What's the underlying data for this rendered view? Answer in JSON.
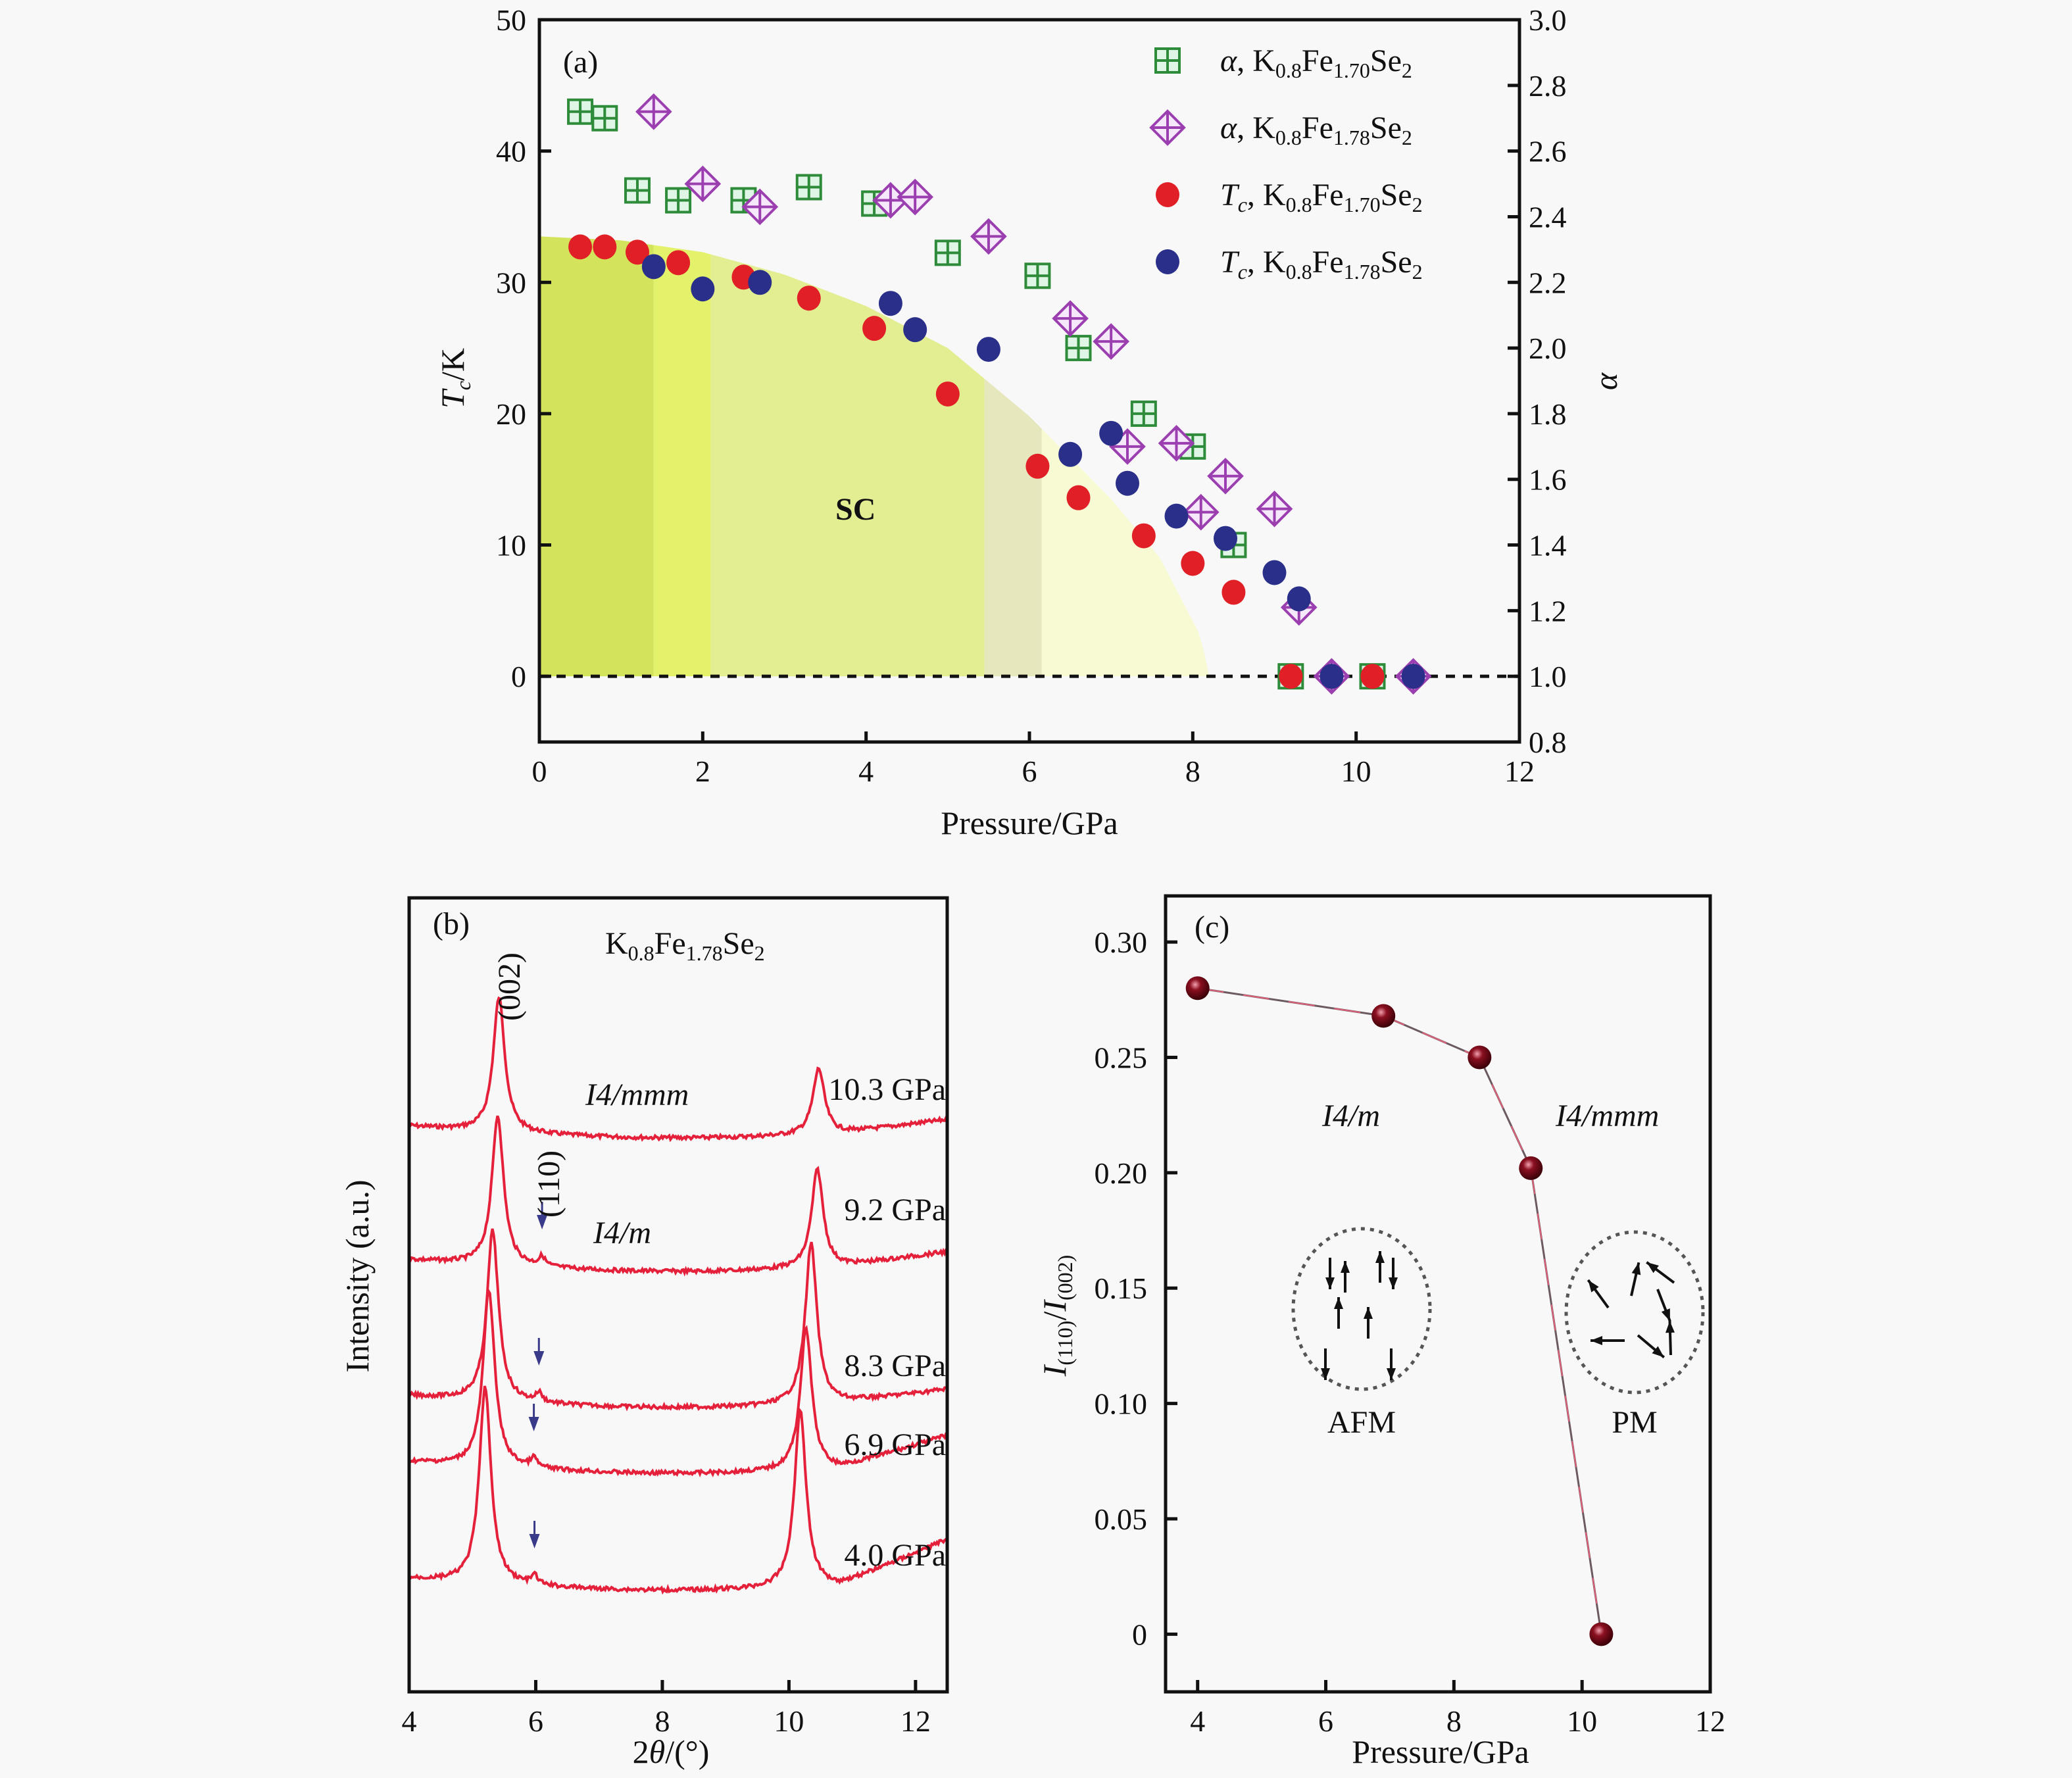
{
  "figure": {
    "panels": [
      "(a)",
      "(b)",
      "(c)"
    ]
  },
  "chart_data": [
    {
      "panel": "(a)",
      "type": "scatter",
      "title": "",
      "xlabel": "Pressure/GPa",
      "ylabel": "T_c/K",
      "ylabel_main": "T",
      "ylabel_sub": "c",
      "ylabel_suffix": "/K",
      "y2label": "α",
      "xlim": [
        0,
        12
      ],
      "ylim": [
        -5,
        50
      ],
      "y2lim": [
        0.8,
        3.0
      ],
      "xticks": [
        0,
        2,
        4,
        6,
        8,
        10,
        12
      ],
      "yticks": [
        0,
        10,
        20,
        30,
        40,
        50
      ],
      "y2ticks": [
        "0.8",
        "1.0",
        "1.2",
        "1.4",
        "1.6",
        "1.8",
        "2.0",
        "2.2",
        "2.4",
        "2.6",
        "2.8",
        "3.0"
      ],
      "grid": false,
      "legend_position": "top-right",
      "reference_line": {
        "y": 0,
        "style": "dashed"
      },
      "region_label": "SC",
      "series": [
        {
          "name": "α, K0.8Fe1.70Se2",
          "legend": {
            "prefix": "α",
            "formula": [
              "K",
              "0.8",
              "Fe",
              "1.70",
              "Se",
              "2"
            ]
          },
          "axis": "right",
          "marker": "square-cross",
          "color": "#2e8b3a",
          "x": [
            0.5,
            0.8,
            1.2,
            1.7,
            2.5,
            3.3,
            4.1,
            5.0,
            6.1,
            6.6,
            7.4,
            8.0,
            8.5,
            9.2,
            10.2
          ],
          "y": [
            2.72,
            2.7,
            2.48,
            2.45,
            2.45,
            2.49,
            2.44,
            2.29,
            2.22,
            2.0,
            1.8,
            1.7,
            1.4,
            1.0,
            1.0
          ]
        },
        {
          "name": "α, K0.8Fe1.78Se2",
          "legend": {
            "prefix": "α",
            "formula": [
              "K",
              "0.8",
              "Fe",
              "1.78",
              "Se",
              "2"
            ]
          },
          "axis": "right",
          "marker": "diamond-cross",
          "color": "#9b3fb0",
          "x": [
            1.4,
            2.0,
            2.7,
            4.3,
            4.6,
            5.5,
            6.5,
            7.0,
            7.2,
            7.8,
            8.1,
            8.4,
            9.0,
            9.3,
            9.7,
            10.7
          ],
          "y": [
            2.72,
            2.5,
            2.43,
            2.45,
            2.46,
            2.34,
            2.09,
            2.02,
            1.7,
            1.71,
            1.5,
            1.61,
            1.51,
            1.21,
            1.0,
            1.0
          ]
        },
        {
          "name": "Tc, K0.8Fe1.70Se2",
          "legend": {
            "prefix": "T",
            "prefix_sub": "c",
            "formula": [
              "K",
              "0.8",
              "Fe",
              "1.70",
              "Se",
              "2"
            ]
          },
          "axis": "left",
          "marker": "circle",
          "color": "#e01f26",
          "x": [
            0.5,
            0.8,
            1.2,
            1.7,
            2.5,
            3.3,
            4.1,
            5.0,
            6.1,
            6.6,
            7.4,
            8.0,
            8.5,
            9.2,
            10.2
          ],
          "y": [
            32.7,
            32.7,
            32.3,
            31.5,
            30.4,
            28.8,
            26.5,
            21.5,
            16.0,
            13.6,
            10.7,
            8.6,
            6.4,
            0,
            0
          ]
        },
        {
          "name": "Tc, K0.8Fe1.78Se2",
          "legend": {
            "prefix": "T",
            "prefix_sub": "c",
            "formula": [
              "K",
              "0.8",
              "Fe",
              "1.78",
              "Se",
              "2"
            ]
          },
          "axis": "left",
          "marker": "circle",
          "color": "#2a2f8a",
          "x": [
            1.4,
            2.0,
            2.7,
            4.3,
            4.6,
            5.5,
            6.5,
            7.0,
            7.2,
            7.8,
            8.4,
            9.0,
            9.3,
            9.7,
            10.7
          ],
          "y": [
            31.2,
            29.5,
            30.0,
            28.4,
            26.4,
            24.9,
            16.9,
            18.5,
            14.7,
            12.2,
            10.5,
            7.9,
            5.9,
            0,
            0
          ]
        }
      ],
      "sc_dome_bands": [
        {
          "x_from": 0,
          "x_to": 1.4,
          "color": "#d4e35c"
        },
        {
          "x_from": 1.4,
          "x_to": 2.1,
          "color": "#e3f26a"
        },
        {
          "x_from": 2.1,
          "x_to": 5.45,
          "color": "#e3ee93"
        },
        {
          "x_from": 5.45,
          "x_to": 6.15,
          "color": "#e6e7bc"
        },
        {
          "x_from": 6.15,
          "x_to": 8.2,
          "color": "#f7fad2"
        }
      ],
      "sc_dome_boundary": {
        "x": [
          0,
          1,
          2,
          3,
          4,
          5,
          6,
          7,
          7.6,
          8.1,
          8.2
        ],
        "y": [
          33.5,
          33.2,
          32.3,
          30.6,
          28.2,
          25.0,
          19.8,
          13.5,
          9.0,
          3.0,
          0
        ]
      }
    },
    {
      "panel": "(b)",
      "type": "line",
      "title": "K0.8Fe1.78Se2",
      "title_parts": [
        "K",
        "0.8",
        "Fe",
        "1.78",
        "Se",
        "2"
      ],
      "xlabel": "2θ/(°)",
      "ylabel": "Intensity (a.u.)",
      "xlim": [
        4,
        12.5
      ],
      "xticks": [
        4,
        6,
        8,
        10,
        12
      ],
      "color": "#e5203a",
      "peak_labels": [
        {
          "text": "(002)",
          "x": 5.4
        },
        {
          "text": "(110)",
          "x": 6.1
        }
      ],
      "phase_labels": [
        {
          "text": "I4/mmm",
          "near": "10.3 GPa"
        },
        {
          "text": "I4/m",
          "near": "9.2 GPa"
        }
      ],
      "series": [
        {
          "name": "10.3 GPa",
          "peak002": 5.42,
          "peak200": 10.47,
          "has110": false,
          "arrow_x": null
        },
        {
          "name": "9.2 GPa",
          "peak002": 5.4,
          "peak200": 10.45,
          "has110": true,
          "arrow_x": 6.1
        },
        {
          "name": "8.3 GPa",
          "peak002": 5.32,
          "peak200": 10.35,
          "has110": true,
          "arrow_x": 6.05
        },
        {
          "name": "6.9 GPa",
          "peak002": 5.26,
          "peak200": 10.27,
          "has110": true,
          "arrow_x": 5.97
        },
        {
          "name": "4.0 GPa",
          "peak002": 5.2,
          "peak200": 10.18,
          "has110": true,
          "arrow_x": 5.98
        }
      ]
    },
    {
      "panel": "(c)",
      "type": "line",
      "title": "",
      "xlabel": "Pressure/GPa",
      "ylabel": "I(110)/I(002)",
      "xlim": [
        3.5,
        12
      ],
      "ylim": [
        -0.025,
        0.32
      ],
      "xticks": [
        4,
        6,
        8,
        10,
        12
      ],
      "yticks": [
        "0",
        "0.05",
        "0.10",
        "0.15",
        "0.20",
        "0.25",
        "0.30"
      ],
      "grid": false,
      "color": "#8b1020",
      "x": [
        4.0,
        6.9,
        8.4,
        9.2,
        10.3
      ],
      "y": [
        0.28,
        0.268,
        0.25,
        0.202,
        0.0
      ],
      "annotations": [
        "I4/m",
        "I4/mmm",
        "AFM",
        "PM"
      ]
    }
  ]
}
